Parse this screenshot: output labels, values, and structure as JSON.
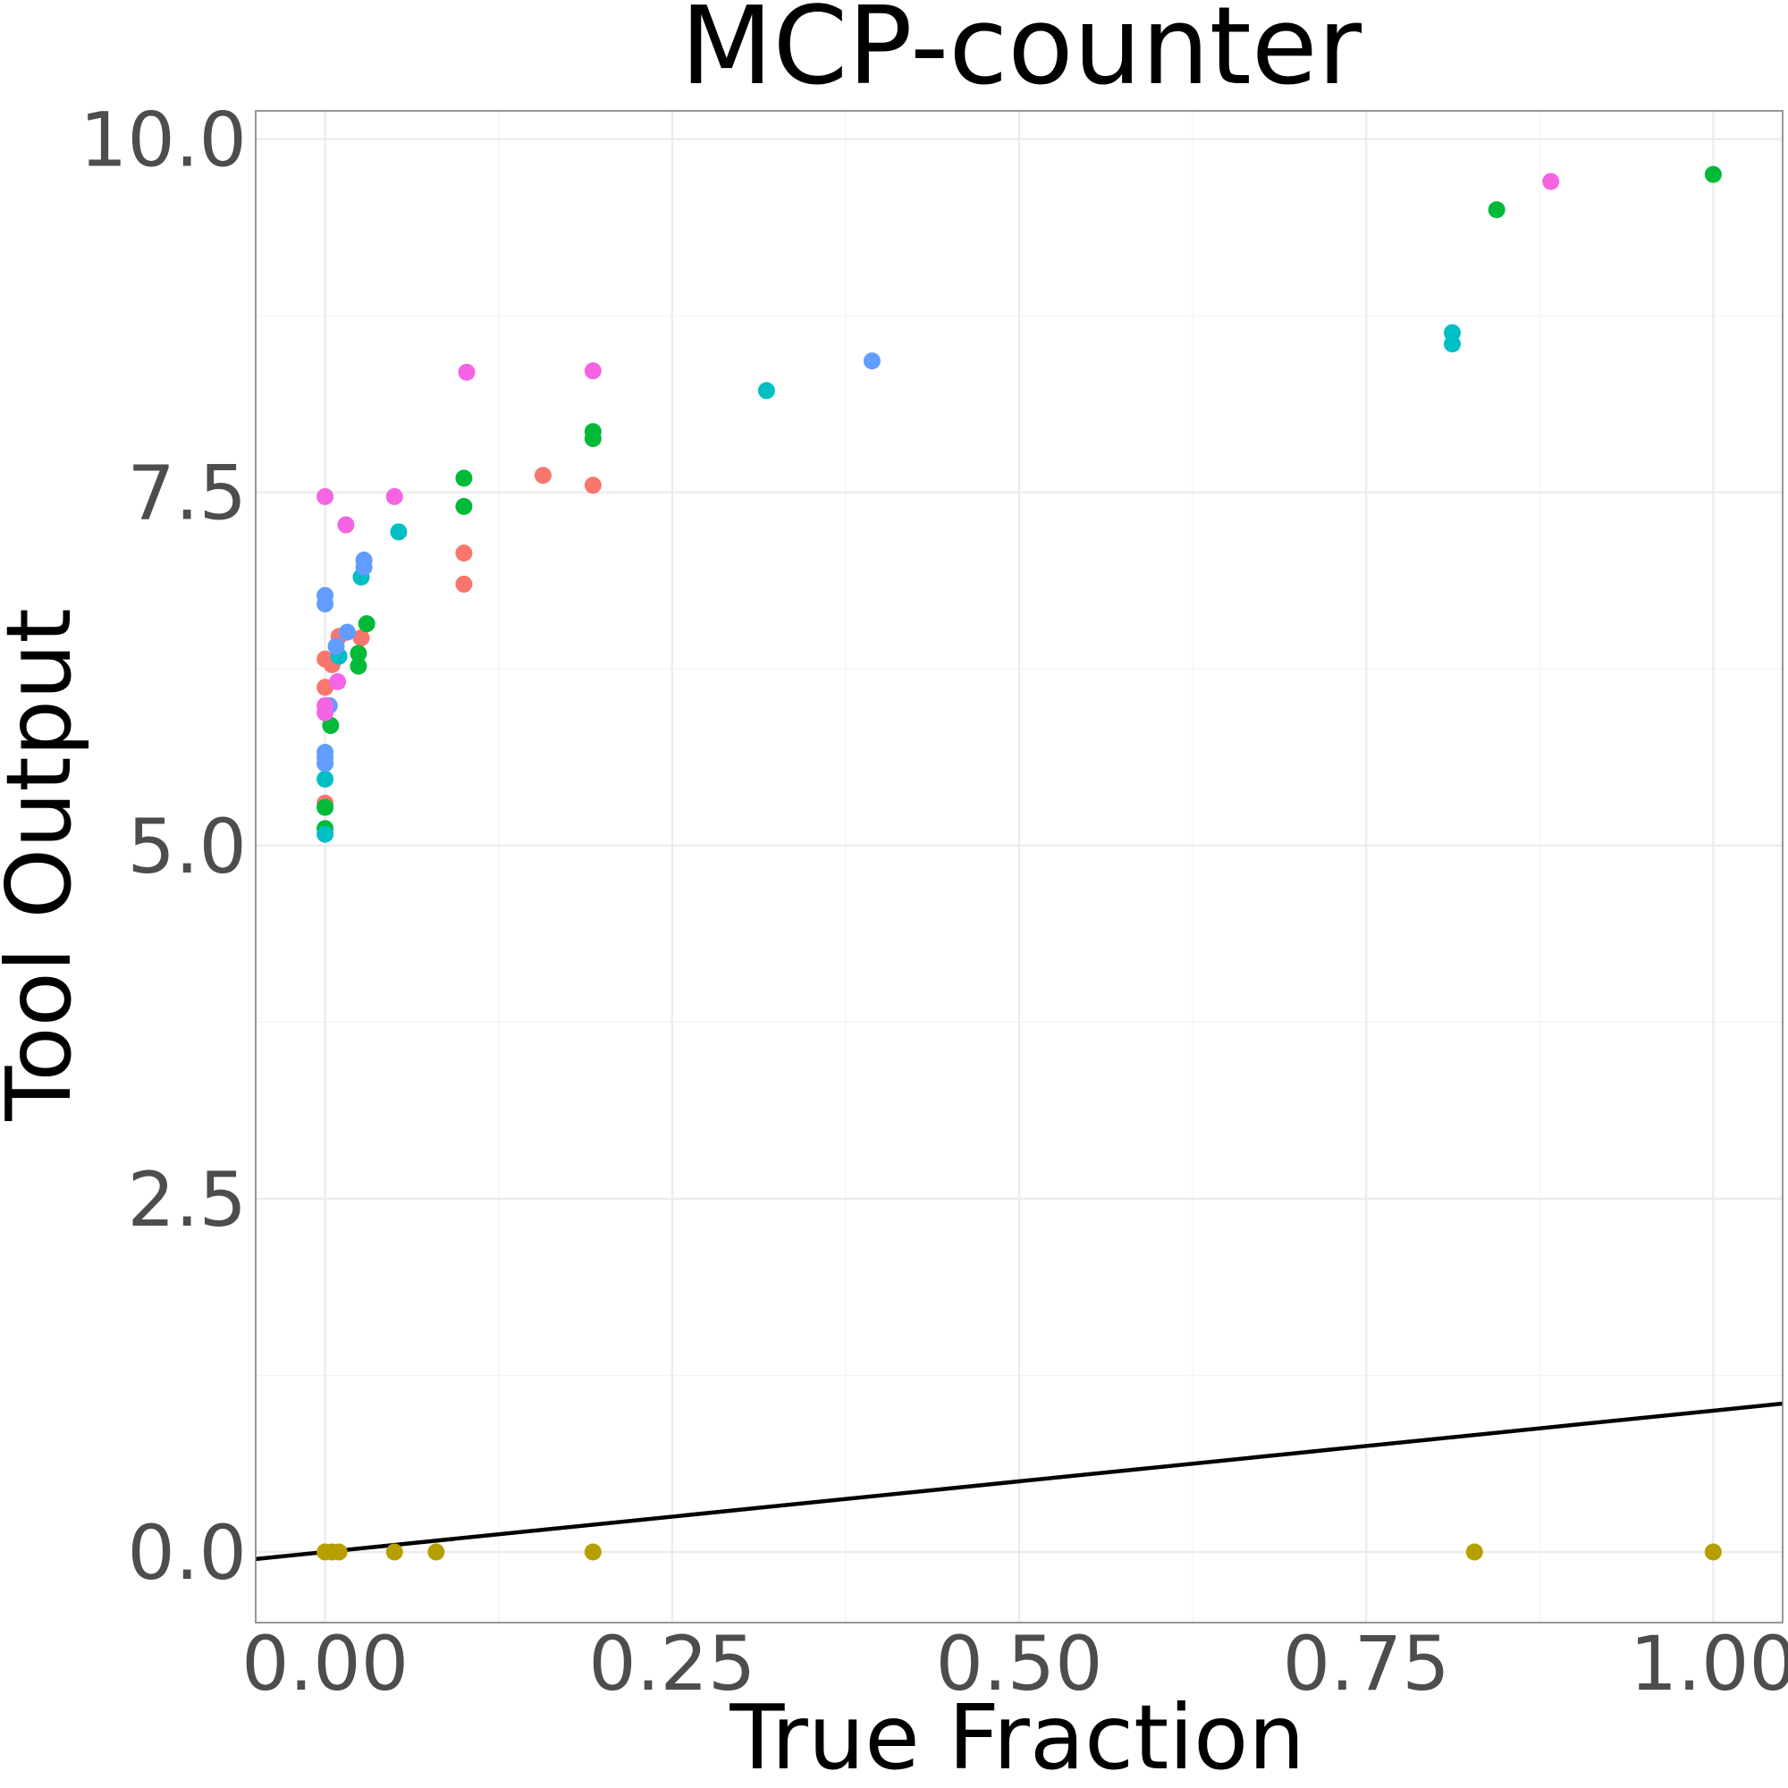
{
  "chart_data": {
    "type": "scatter",
    "title": "MCP-counter",
    "xlabel": "True Fraction",
    "ylabel": "Tool Output",
    "xlim": [
      -0.05,
      1.05
    ],
    "ylim": [
      -0.5,
      10.2
    ],
    "x_ticks": [
      0,
      0.25,
      0.5,
      0.75,
      1
    ],
    "x_tick_labels": [
      "0.00",
      "0.25",
      "0.50",
      "0.75",
      "1.00"
    ],
    "y_ticks": [
      0,
      2.5,
      5,
      7.5,
      10
    ],
    "y_tick_labels": [
      "0.0",
      "2.5",
      "5.0",
      "7.5",
      "10.0"
    ],
    "grid": true,
    "legend": "none",
    "reference_line": {
      "type": "identity",
      "slope": 1,
      "intercept": 0
    },
    "series": [
      {
        "color": "#F8766D",
        "points": [
          [
            0,
            6.32
          ],
          [
            0.005,
            6.28
          ],
          [
            0,
            6.12
          ],
          [
            0.01,
            6.48
          ],
          [
            0,
            5.3
          ],
          [
            0.026,
            6.47
          ],
          [
            0.1,
            7.07
          ],
          [
            0.1,
            6.85
          ],
          [
            0.157,
            7.62
          ],
          [
            0.193,
            7.55
          ]
        ]
      },
      {
        "color": "#B79F00",
        "points": [
          [
            0,
            0
          ],
          [
            0.005,
            0
          ],
          [
            0.01,
            0
          ],
          [
            0.05,
            0
          ],
          [
            0.08,
            0
          ],
          [
            0.193,
            0
          ],
          [
            0.828,
            0
          ],
          [
            1.0,
            0
          ]
        ]
      },
      {
        "color": "#00BA38",
        "points": [
          [
            0,
            5.27
          ],
          [
            0,
            5.12
          ],
          [
            0.004,
            5.85
          ],
          [
            0.024,
            6.36
          ],
          [
            0.024,
            6.27
          ],
          [
            0.03,
            6.57
          ],
          [
            0.1,
            7.6
          ],
          [
            0.1,
            7.4
          ],
          [
            0.193,
            7.93
          ],
          [
            0.193,
            7.88
          ],
          [
            0.844,
            9.5
          ],
          [
            1.0,
            9.75
          ]
        ]
      },
      {
        "color": "#00BFC4",
        "points": [
          [
            0,
            5.08
          ],
          [
            0,
            5.47
          ],
          [
            0.01,
            6.34
          ],
          [
            0.026,
            6.9
          ],
          [
            0.053,
            7.22
          ],
          [
            0.318,
            8.22
          ],
          [
            0.812,
            8.63
          ],
          [
            0.812,
            8.55
          ]
        ]
      },
      {
        "color": "#619CFF",
        "points": [
          [
            0,
            6.77
          ],
          [
            0,
            6.71
          ],
          [
            0,
            5.66
          ],
          [
            0,
            5.62
          ],
          [
            0,
            5.58
          ],
          [
            0.003,
            5.99
          ],
          [
            0.008,
            6.41
          ],
          [
            0.016,
            6.51
          ],
          [
            0.028,
            7.02
          ],
          [
            0.028,
            6.97
          ],
          [
            0.394,
            8.43
          ]
        ]
      },
      {
        "color": "#F564E3",
        "points": [
          [
            0,
            7.47
          ],
          [
            0,
            5.99
          ],
          [
            0,
            5.94
          ],
          [
            0.009,
            6.16
          ],
          [
            0.015,
            7.27
          ],
          [
            0.05,
            7.47
          ],
          [
            0.102,
            8.35
          ],
          [
            0.193,
            8.36
          ],
          [
            0.883,
            9.7
          ]
        ]
      }
    ]
  }
}
